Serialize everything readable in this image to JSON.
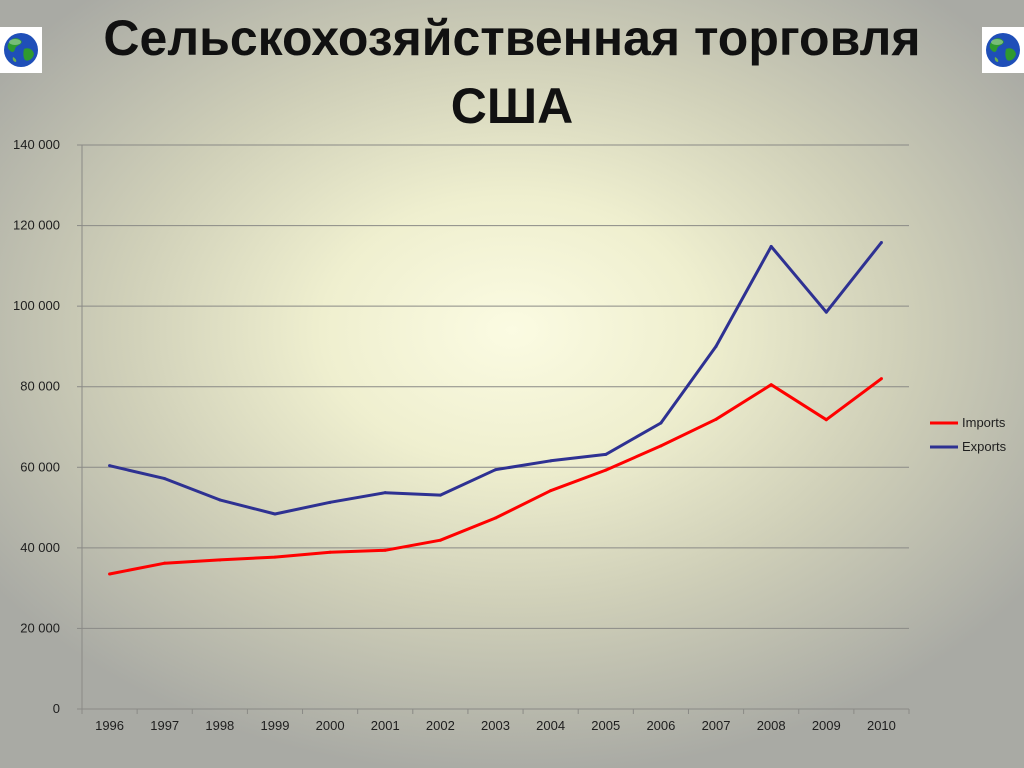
{
  "slide": {
    "title": "Сельскохозяйственная торговля США",
    "left_icon": "globe-icon",
    "right_icon": "globe-icon"
  },
  "chart_data": {
    "type": "line",
    "title": "",
    "xlabel": "",
    "ylabel": "",
    "x": [
      "1996",
      "1997",
      "1998",
      "1999",
      "2000",
      "2001",
      "2002",
      "2003",
      "2004",
      "2005",
      "2006",
      "2007",
      "2008",
      "2009",
      "2010"
    ],
    "ylim": [
      0,
      140000
    ],
    "yticks": [
      0,
      20000,
      40000,
      60000,
      80000,
      100000,
      120000,
      140000
    ],
    "ytick_labels": [
      "0",
      "20 000",
      "40 000",
      "60 000",
      "80 000",
      "100 000",
      "120 000",
      "140 000"
    ],
    "grid": true,
    "legend_position": "right",
    "series": [
      {
        "name": "Imports",
        "color": "#ff0000",
        "values": [
          33500,
          36200,
          37000,
          37700,
          38900,
          39400,
          41900,
          47400,
          54200,
          59300,
          65300,
          71900,
          80500,
          71800,
          82000
        ]
      },
      {
        "name": "Exports",
        "color": "#2e3192",
        "values": [
          60400,
          57200,
          51900,
          48400,
          51300,
          53700,
          53100,
          59400,
          61600,
          63200,
          71000,
          90000,
          114800,
          98500,
          115800
        ]
      }
    ]
  }
}
